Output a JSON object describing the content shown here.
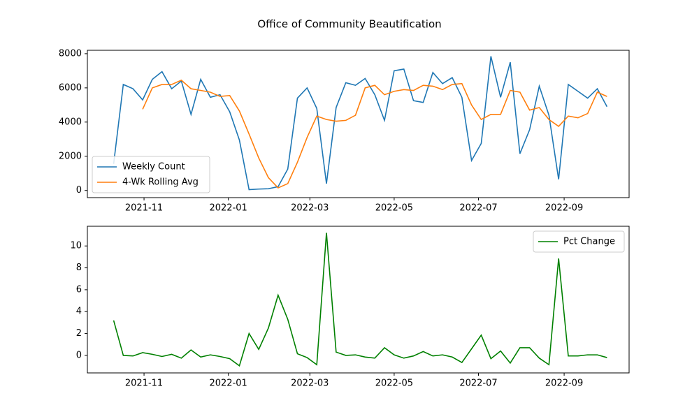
{
  "chart_data": [
    {
      "type": "line",
      "title": "Office of Community Beautification",
      "x": [
        "2021-10-10",
        "2021-10-17",
        "2021-10-24",
        "2021-10-31",
        "2021-11-07",
        "2021-11-14",
        "2021-11-21",
        "2021-11-28",
        "2021-12-05",
        "2021-12-12",
        "2021-12-19",
        "2021-12-26",
        "2022-01-02",
        "2022-01-09",
        "2022-01-16",
        "2022-01-23",
        "2022-01-30",
        "2022-02-06",
        "2022-02-13",
        "2022-02-20",
        "2022-02-27",
        "2022-03-06",
        "2022-03-13",
        "2022-03-20",
        "2022-03-27",
        "2022-04-03",
        "2022-04-10",
        "2022-04-17",
        "2022-04-24",
        "2022-05-01",
        "2022-05-08",
        "2022-05-15",
        "2022-05-22",
        "2022-05-29",
        "2022-06-05",
        "2022-06-12",
        "2022-06-19",
        "2022-06-26",
        "2022-07-03",
        "2022-07-10",
        "2022-07-17",
        "2022-07-24",
        "2022-07-31",
        "2022-08-07",
        "2022-08-14",
        "2022-08-21",
        "2022-08-28",
        "2022-09-04",
        "2022-09-11",
        "2022-09-18",
        "2022-09-25",
        "2022-10-02"
      ],
      "series": [
        {
          "name": "Weekly Count",
          "color": "#1f77b4",
          "values": [
            1550,
            6200,
            5950,
            5300,
            6500,
            6950,
            5950,
            6400,
            4450,
            6500,
            5450,
            5600,
            4600,
            2950,
            50,
            80,
            100,
            220,
            1250,
            5400,
            6000,
            4800,
            400,
            4850,
            6300,
            6150,
            6550,
            5600,
            4100,
            7000,
            7100,
            5250,
            5150,
            6900,
            6250,
            6600,
            5450,
            1750,
            2750,
            7850,
            5450,
            7500,
            2150,
            3550,
            6100,
            4400,
            650,
            6200,
            5800,
            5400,
            5950,
            4900
          ]
        },
        {
          "name": "4-Wk Rolling Avg",
          "color": "#ff7f0e",
          "values": [
            null,
            null,
            null,
            4750,
            6000,
            6200,
            6200,
            6450,
            5950,
            5850,
            5750,
            5500,
            5550,
            4650,
            3300,
            1900,
            750,
            150,
            400,
            1650,
            3100,
            4350,
            4150,
            4050,
            4100,
            4400,
            6000,
            6150,
            5600,
            5800,
            5900,
            5850,
            6150,
            6100,
            5900,
            6200,
            6250,
            5000,
            4150,
            4450,
            4450,
            5850,
            5750,
            4700,
            4850,
            4150,
            3750,
            4350,
            4250,
            4500,
            5750,
            5500
          ]
        }
      ],
      "xlim": [
        "2021-09-21",
        "2022-10-18"
      ],
      "xticks": [
        "2021-11",
        "2022-01",
        "2022-03",
        "2022-05",
        "2022-07",
        "2022-09"
      ],
      "ylim": [
        -420,
        8200
      ],
      "yticks": [
        0,
        2000,
        4000,
        6000,
        8000
      ],
      "legend": "lower left"
    },
    {
      "type": "line",
      "x": [
        "2021-10-10",
        "2021-10-17",
        "2021-10-24",
        "2021-10-31",
        "2021-11-07",
        "2021-11-14",
        "2021-11-21",
        "2021-11-28",
        "2021-12-05",
        "2021-12-12",
        "2021-12-19",
        "2021-12-26",
        "2022-01-02",
        "2022-01-09",
        "2022-01-16",
        "2022-01-23",
        "2022-01-30",
        "2022-02-06",
        "2022-02-13",
        "2022-02-20",
        "2022-02-27",
        "2022-03-06",
        "2022-03-13",
        "2022-03-20",
        "2022-03-27",
        "2022-04-03",
        "2022-04-10",
        "2022-04-17",
        "2022-04-24",
        "2022-05-01",
        "2022-05-08",
        "2022-05-15",
        "2022-05-22",
        "2022-05-29",
        "2022-06-05",
        "2022-06-12",
        "2022-06-19",
        "2022-06-26",
        "2022-07-03",
        "2022-07-10",
        "2022-07-17",
        "2022-07-24",
        "2022-07-31",
        "2022-08-07",
        "2022-08-14",
        "2022-08-21",
        "2022-08-28",
        "2022-09-04",
        "2022-09-11",
        "2022-09-18",
        "2022-09-25",
        "2022-10-02"
      ],
      "series": [
        {
          "name": "Pct Change",
          "color": "#008000",
          "values": [
            3.2,
            0,
            -0.05,
            0.25,
            0.1,
            -0.1,
            0.1,
            -0.25,
            0.5,
            -0.15,
            0.05,
            -0.1,
            -0.3,
            -0.95,
            2,
            0.55,
            2.5,
            5.5,
            3.3,
            0.15,
            -0.2,
            -0.85,
            11.2,
            0.3,
            0,
            0.05,
            -0.15,
            -0.25,
            0.7,
            0.05,
            -0.25,
            -0.05,
            0.35,
            -0.05,
            0.05,
            -0.15,
            -0.65,
            0.6,
            1.85,
            -0.3,
            0.4,
            -0.7,
            0.7,
            0.7,
            -0.25,
            -0.85,
            8.85,
            -0.05,
            -0.05,
            0.05,
            0.05,
            -0.2
          ]
        }
      ],
      "xlim": [
        "2021-09-21",
        "2022-10-18"
      ],
      "xticks": [
        "2021-11",
        "2022-01",
        "2022-03",
        "2022-05",
        "2022-07",
        "2022-09"
      ],
      "ylim": [
        -1.6,
        11.8
      ],
      "yticks": [
        0,
        2,
        4,
        6,
        8,
        10
      ],
      "legend": "upper right"
    }
  ]
}
